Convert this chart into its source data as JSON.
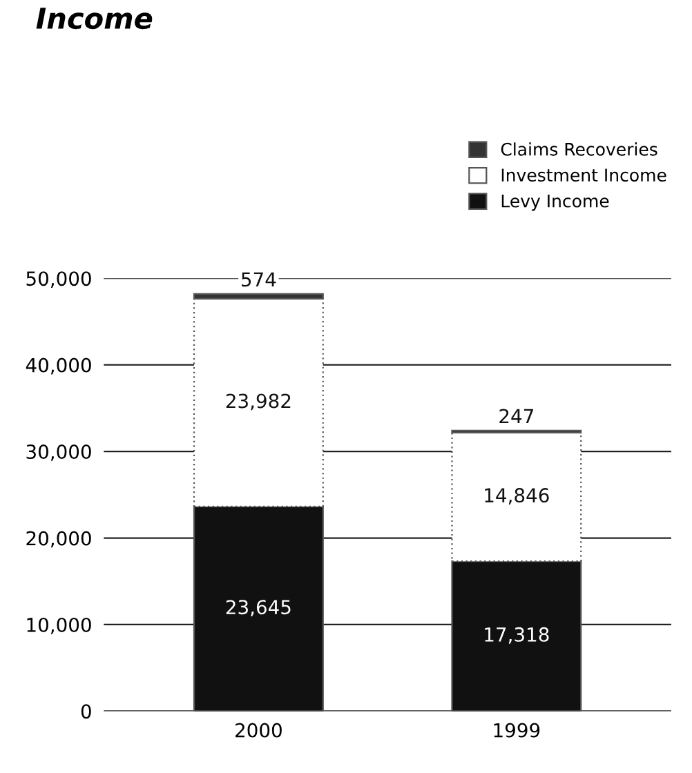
{
  "chart_data": {
    "type": "bar",
    "title": "Income",
    "stacked": true,
    "categories": [
      "2000",
      "1999"
    ],
    "series": [
      {
        "name": "Levy Income",
        "color": "#111111",
        "values": [
          23645,
          17318
        ],
        "value_labels": [
          "23,645",
          "17,318"
        ]
      },
      {
        "name": "Investment Income",
        "color": "#ffffff",
        "values": [
          23982,
          14846
        ],
        "value_labels": [
          "23,982",
          "14,846"
        ]
      },
      {
        "name": "Claims Recoveries",
        "color": "#333333",
        "values": [
          574,
          247
        ],
        "value_labels": [
          "574",
          "247"
        ]
      }
    ],
    "ylim": [
      0,
      50000
    ],
    "yticks": [
      {
        "value": 0,
        "label": "0"
      },
      {
        "value": 10000,
        "label": "10,000"
      },
      {
        "value": 20000,
        "label": "20,000"
      },
      {
        "value": 30000,
        "label": "30,000"
      },
      {
        "value": 40000,
        "label": "40,000"
      },
      {
        "value": 50000,
        "label": "50,000"
      }
    ],
    "grid": "y",
    "legend": "top right"
  }
}
